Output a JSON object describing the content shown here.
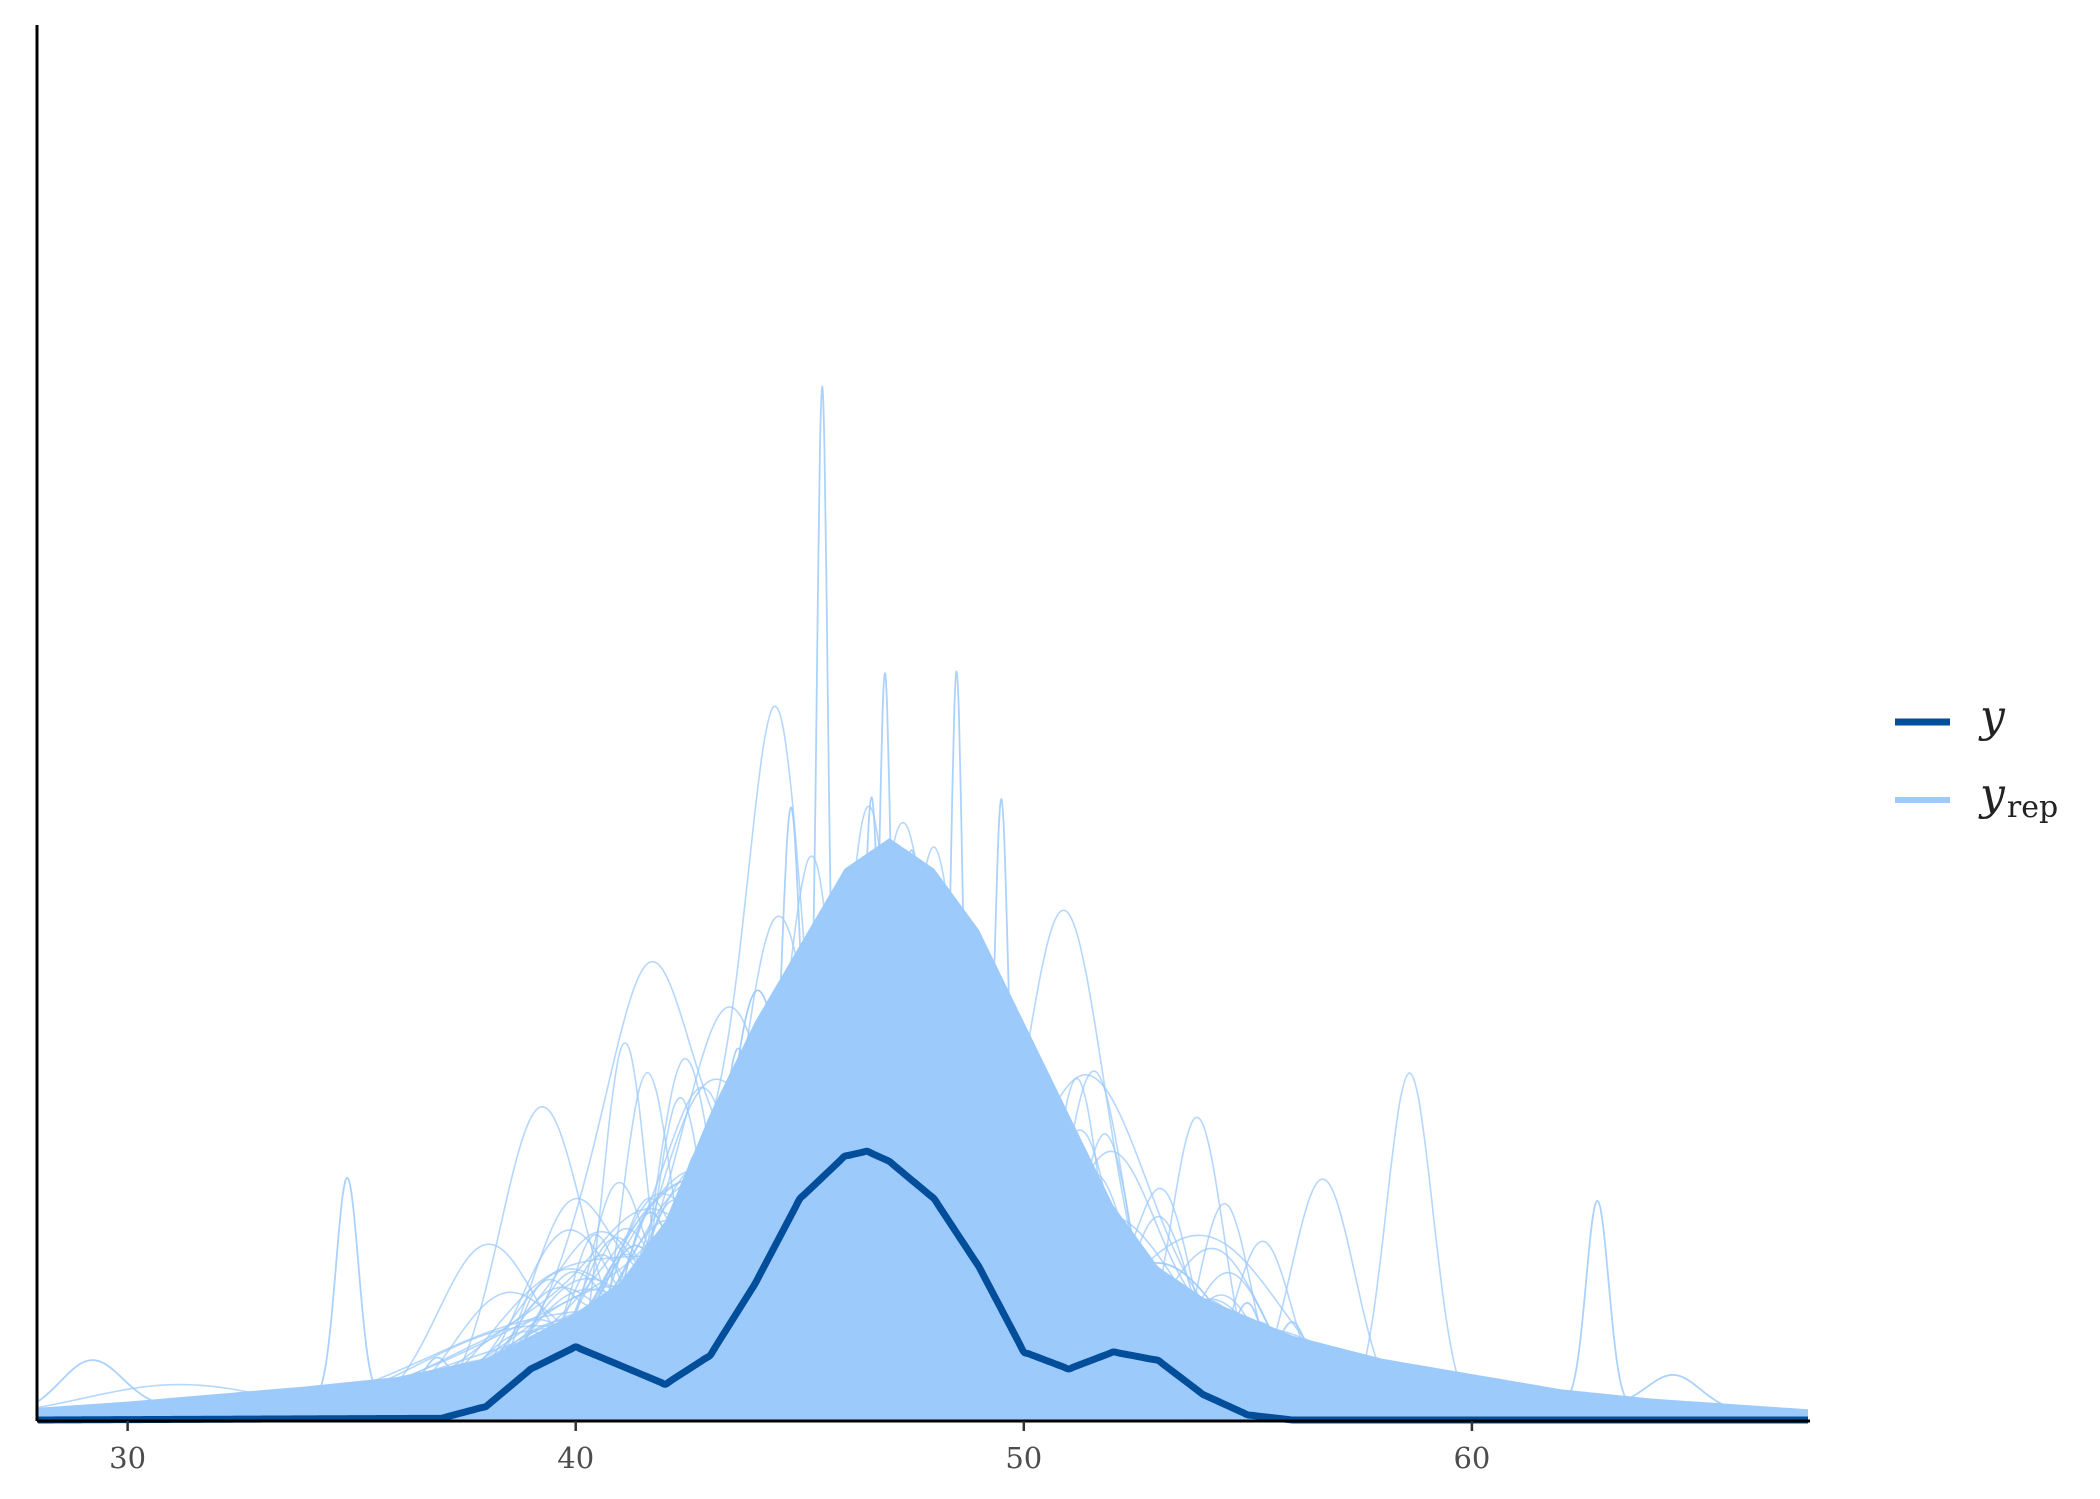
{
  "chart_data": {
    "type": "line",
    "title": "",
    "xlabel": "",
    "ylabel": "",
    "xlim": [
      28,
      67.5
    ],
    "ylim": [
      0,
      0.82
    ],
    "x_ticks": [
      30,
      40,
      50,
      60
    ],
    "grid": false,
    "legend_position": "right",
    "legend": [
      {
        "label": "y",
        "color": "#034e9a"
      },
      {
        "label": "y",
        "subscript": "rep",
        "color": "#9ccafb"
      }
    ],
    "series": [
      {
        "name": "y",
        "role": "observed",
        "color": "#034e9a",
        "x": [
          28,
          37,
          38,
          39,
          40,
          41,
          42,
          43,
          44,
          45,
          46,
          46.5,
          47,
          48,
          49,
          50,
          51,
          52,
          53,
          54,
          55,
          56,
          67.5
        ],
        "y": [
          0,
          0.001,
          0.008,
          0.03,
          0.043,
          0.032,
          0.021,
          0.038,
          0.08,
          0.13,
          0.155,
          0.158,
          0.152,
          0.13,
          0.09,
          0.04,
          0.03,
          0.04,
          0.035,
          0.015,
          0.003,
          0.0,
          0
        ]
      },
      {
        "name": "y_rep",
        "role": "replicated",
        "color": "#9ccafb",
        "n_draws": 400,
        "envelope": {
          "x": [
            28,
            30,
            32,
            34,
            36,
            38,
            40,
            41,
            42,
            43,
            44,
            45,
            46,
            47,
            48,
            49,
            50,
            51,
            52,
            53,
            54,
            56,
            58,
            60,
            62,
            64,
            66,
            67.5
          ],
          "y": [
            0.008,
            0.012,
            0.017,
            0.022,
            0.028,
            0.04,
            0.07,
            0.09,
            0.13,
            0.2,
            0.26,
            0.31,
            0.36,
            0.38,
            0.36,
            0.32,
            0.26,
            0.2,
            0.14,
            0.1,
            0.08,
            0.055,
            0.04,
            0.03,
            0.02,
            0.014,
            0.01,
            0.007
          ]
        },
        "spikes": [
          {
            "x": 29.2,
            "height": 0.03,
            "width": 0.7
          },
          {
            "x": 34.9,
            "height": 0.13,
            "width": 0.25
          },
          {
            "x": 36.9,
            "height": 0.02,
            "width": 0.3
          },
          {
            "x": 43.6,
            "height": 0.1,
            "width": 0.3
          },
          {
            "x": 44.8,
            "height": 0.21,
            "width": 0.2
          },
          {
            "x": 45.5,
            "height": 0.44,
            "width": 0.12
          },
          {
            "x": 46.6,
            "height": 0.18,
            "width": 0.15
          },
          {
            "x": 46.9,
            "height": 0.25,
            "width": 0.12
          },
          {
            "x": 47.5,
            "height": 0.15,
            "width": 0.25
          },
          {
            "x": 48.5,
            "height": 0.27,
            "width": 0.12
          },
          {
            "x": 49.5,
            "height": 0.22,
            "width": 0.14
          },
          {
            "x": 51.0,
            "height": 0.05,
            "width": 0.4
          },
          {
            "x": 55.0,
            "height": 0.035,
            "width": 0.3
          },
          {
            "x": 56.0,
            "height": 0.03,
            "width": 0.3
          },
          {
            "x": 62.8,
            "height": 0.12,
            "width": 0.25
          },
          {
            "x": 64.5,
            "height": 0.02,
            "width": 0.6
          }
        ]
      }
    ]
  }
}
